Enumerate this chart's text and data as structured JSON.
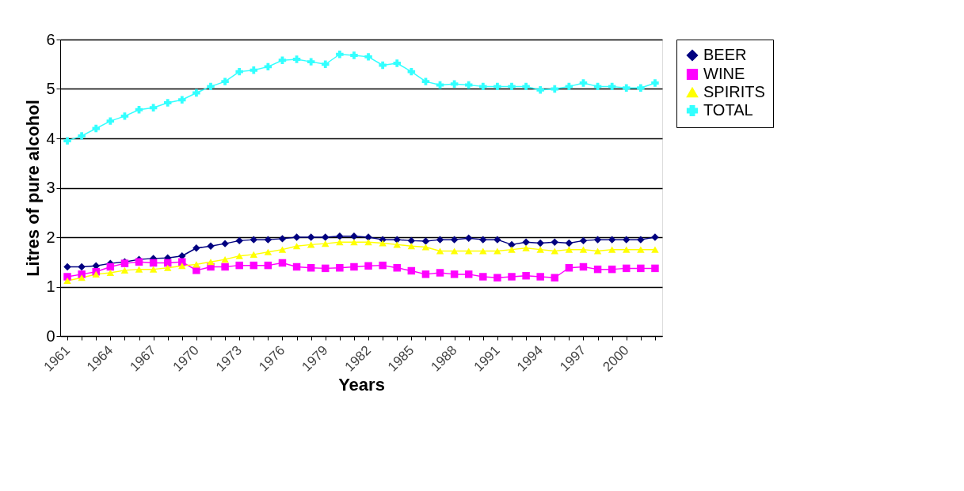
{
  "chart_data": {
    "type": "line",
    "xlabel": "Years",
    "ylabel": "Litres of pure alcohol",
    "categories": [
      "1961",
      null,
      null,
      "1964",
      null,
      null,
      "1967",
      null,
      null,
      "1970",
      null,
      null,
      "1973",
      null,
      null,
      "1976",
      null,
      null,
      "1979",
      null,
      null,
      "1982",
      null,
      null,
      "1985",
      null,
      null,
      "1988",
      null,
      null,
      "1991",
      null,
      null,
      "1994",
      null,
      null,
      "1997",
      null,
      null,
      "2000",
      null,
      null
    ],
    "series": [
      {
        "name": "BEER",
        "color": "#000080",
        "marker": "diamond",
        "values": [
          1.4,
          1.4,
          1.42,
          1.47,
          1.5,
          1.55,
          1.57,
          1.58,
          1.62,
          1.78,
          1.82,
          1.87,
          1.93,
          1.95,
          1.95,
          1.97,
          2.0,
          2.0,
          2.0,
          2.02,
          2.02,
          2.0,
          1.95,
          1.95,
          1.93,
          1.92,
          1.95,
          1.95,
          1.98,
          1.95,
          1.95,
          1.85,
          1.9,
          1.88,
          1.9,
          1.88,
          1.93,
          1.95,
          1.95,
          1.95,
          1.95,
          2.0
        ]
      },
      {
        "name": "WINE",
        "color": "#ff00ff",
        "marker": "square",
        "values": [
          1.2,
          1.25,
          1.3,
          1.4,
          1.47,
          1.5,
          1.48,
          1.48,
          1.5,
          1.33,
          1.4,
          1.4,
          1.43,
          1.43,
          1.43,
          1.48,
          1.4,
          1.38,
          1.37,
          1.38,
          1.4,
          1.42,
          1.43,
          1.38,
          1.32,
          1.25,
          1.28,
          1.25,
          1.25,
          1.2,
          1.18,
          1.2,
          1.22,
          1.2,
          1.18,
          1.38,
          1.4,
          1.35,
          1.35,
          1.37,
          1.37,
          1.37
        ]
      },
      {
        "name": "SPIRITS",
        "color": "#ffff00",
        "marker": "triangle",
        "values": [
          1.12,
          1.18,
          1.25,
          1.28,
          1.33,
          1.35,
          1.35,
          1.38,
          1.42,
          1.45,
          1.5,
          1.55,
          1.62,
          1.65,
          1.7,
          1.75,
          1.82,
          1.85,
          1.87,
          1.9,
          1.9,
          1.9,
          1.88,
          1.85,
          1.82,
          1.8,
          1.72,
          1.72,
          1.72,
          1.72,
          1.72,
          1.75,
          1.78,
          1.75,
          1.72,
          1.75,
          1.75,
          1.72,
          1.75,
          1.75,
          1.75,
          1.75
        ]
      },
      {
        "name": "TOTAL",
        "color": "#33ffff",
        "marker": "cross",
        "values": [
          3.95,
          4.05,
          4.2,
          4.35,
          4.45,
          4.58,
          4.62,
          4.72,
          4.78,
          4.92,
          5.05,
          5.15,
          5.35,
          5.38,
          5.45,
          5.58,
          5.6,
          5.55,
          5.5,
          5.7,
          5.68,
          5.65,
          5.48,
          5.52,
          5.35,
          5.15,
          5.08,
          5.1,
          5.08,
          5.05,
          5.05,
          5.05,
          5.05,
          4.98,
          5.0,
          5.05,
          5.12,
          5.05,
          5.05,
          5.02,
          5.02,
          5.12
        ]
      }
    ],
    "ylim": [
      0,
      6
    ],
    "yticks": [
      0,
      1,
      2,
      3,
      4,
      5,
      6
    ],
    "grid": "y",
    "legend": "right",
    "line_style": "solid"
  }
}
